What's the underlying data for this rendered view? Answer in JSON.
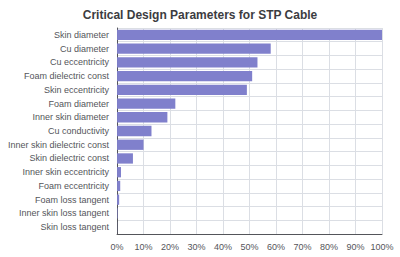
{
  "chart_data": {
    "type": "bar",
    "orientation": "horizontal",
    "title": "Critical Design Parameters for STP Cable",
    "categories": [
      "Skin diameter",
      "Cu diameter",
      "Cu eccentricity",
      "Foam dielectric const",
      "Skin eccentricity",
      "Foam diameter",
      "Inner skin diameter",
      "Cu conductivity",
      "Inner skin dielectric const",
      "Skin dielectric const",
      "Inner skin eccentricity",
      "Foam eccentricity",
      "Foam loss tangent",
      "Inner skin loss tangent",
      "Skin loss tangent"
    ],
    "values": [
      100,
      58,
      53,
      51,
      49,
      22,
      19,
      13,
      10,
      6,
      1.5,
      1.2,
      0.8,
      0.2,
      0.05
    ],
    "color": "#8080CC",
    "xlim": [
      0,
      100
    ],
    "xticks": [
      {
        "value": 0,
        "label": "0%"
      },
      {
        "value": 10,
        "label": "10%"
      },
      {
        "value": 20,
        "label": "20%"
      },
      {
        "value": 30,
        "label": "30%"
      },
      {
        "value": 40,
        "label": "40%"
      },
      {
        "value": 50,
        "label": "50%"
      },
      {
        "value": 60,
        "label": "60%"
      },
      {
        "value": 70,
        "label": "70%"
      },
      {
        "value": 80,
        "label": "80%"
      },
      {
        "value": 90,
        "label": "90%"
      },
      {
        "value": 100,
        "label": "100%"
      }
    ],
    "grid": true
  }
}
